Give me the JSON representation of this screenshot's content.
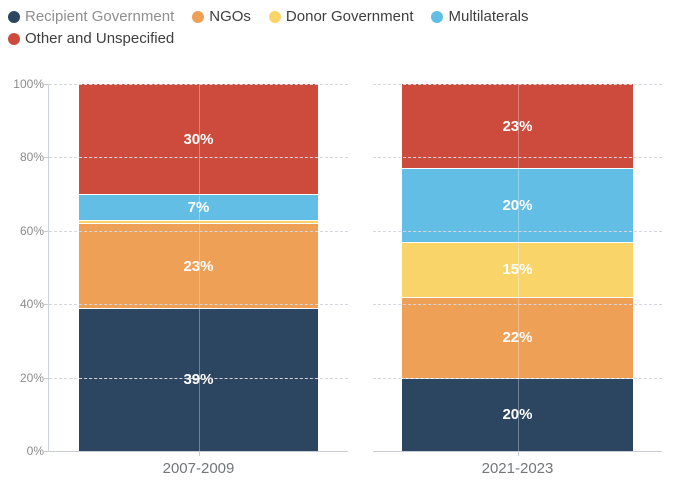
{
  "legend": {
    "items": [
      {
        "label": "Recipient Government",
        "color": "#2c4662",
        "muted": true
      },
      {
        "label": "NGOs",
        "color": "#efa057",
        "muted": false
      },
      {
        "label": "Donor Government",
        "color": "#f9d469",
        "muted": false
      },
      {
        "label": "Multilaterals",
        "color": "#62bee5",
        "muted": false
      },
      {
        "label": "Other and Unspecified",
        "color": "#cd4b3c",
        "muted": false
      }
    ]
  },
  "y_axis": {
    "ticks": [
      "100%",
      "80%",
      "60%",
      "40%",
      "20%",
      "0%"
    ]
  },
  "chart_data": {
    "type": "bar",
    "subtype": "stacked-100-percent",
    "stacked": true,
    "categories": [
      "2007-2009",
      "2021-2023"
    ],
    "series": [
      {
        "name": "Recipient Government",
        "color": "#2c4662",
        "values": [
          39,
          20
        ],
        "labels": [
          "39%",
          "20%"
        ]
      },
      {
        "name": "NGOs",
        "color": "#efa057",
        "values": [
          23,
          22
        ],
        "labels": [
          "23%",
          "22%"
        ]
      },
      {
        "name": "Donor Government",
        "color": "#f9d469",
        "values": [
          1,
          15
        ],
        "labels": [
          "",
          "15%"
        ]
      },
      {
        "name": "Multilaterals",
        "color": "#62bee5",
        "values": [
          7,
          20
        ],
        "labels": [
          "7%",
          "20%"
        ]
      },
      {
        "name": "Other and Unspecified",
        "color": "#cd4b3c",
        "values": [
          30,
          23
        ],
        "labels": [
          "30%",
          "23%"
        ]
      }
    ],
    "ylim": [
      0,
      100
    ],
    "grid": "dashed-horizontal",
    "gridline_values": [
      100,
      80,
      60,
      40,
      20
    ],
    "legend_position": "top-left",
    "data_label_color": "#ffffff"
  }
}
